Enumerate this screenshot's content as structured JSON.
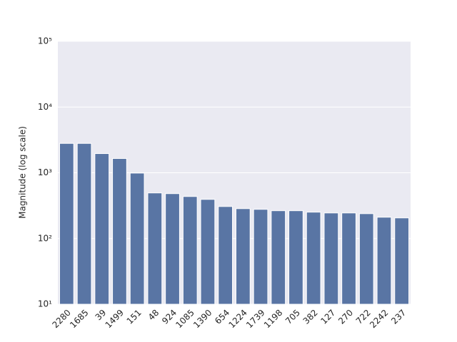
{
  "chart_data": {
    "type": "bar",
    "ylabel": "Magnitude (log scale)",
    "categories": [
      "2280",
      "1685",
      "39",
      "1499",
      "151",
      "48",
      "924",
      "1085",
      "1390",
      "654",
      "1224",
      "1739",
      "1198",
      "705",
      "382",
      "127",
      "270",
      "722",
      "2242",
      "237"
    ],
    "values": [
      2800,
      2800,
      1960,
      1650,
      990,
      494,
      482,
      436,
      394,
      307,
      285,
      278,
      265,
      265,
      252,
      245,
      245,
      239,
      211,
      206
    ],
    "color": "#5975a4",
    "log_scale": true,
    "ylim": [
      10,
      100000
    ],
    "yticks": [
      {
        "value": 10,
        "label": "10¹"
      },
      {
        "value": 100,
        "label": "10²"
      },
      {
        "value": 1000,
        "label": "10³"
      },
      {
        "value": 10000,
        "label": "10⁴"
      },
      {
        "value": 100000,
        "label": "10⁵"
      }
    ],
    "grid": true
  }
}
